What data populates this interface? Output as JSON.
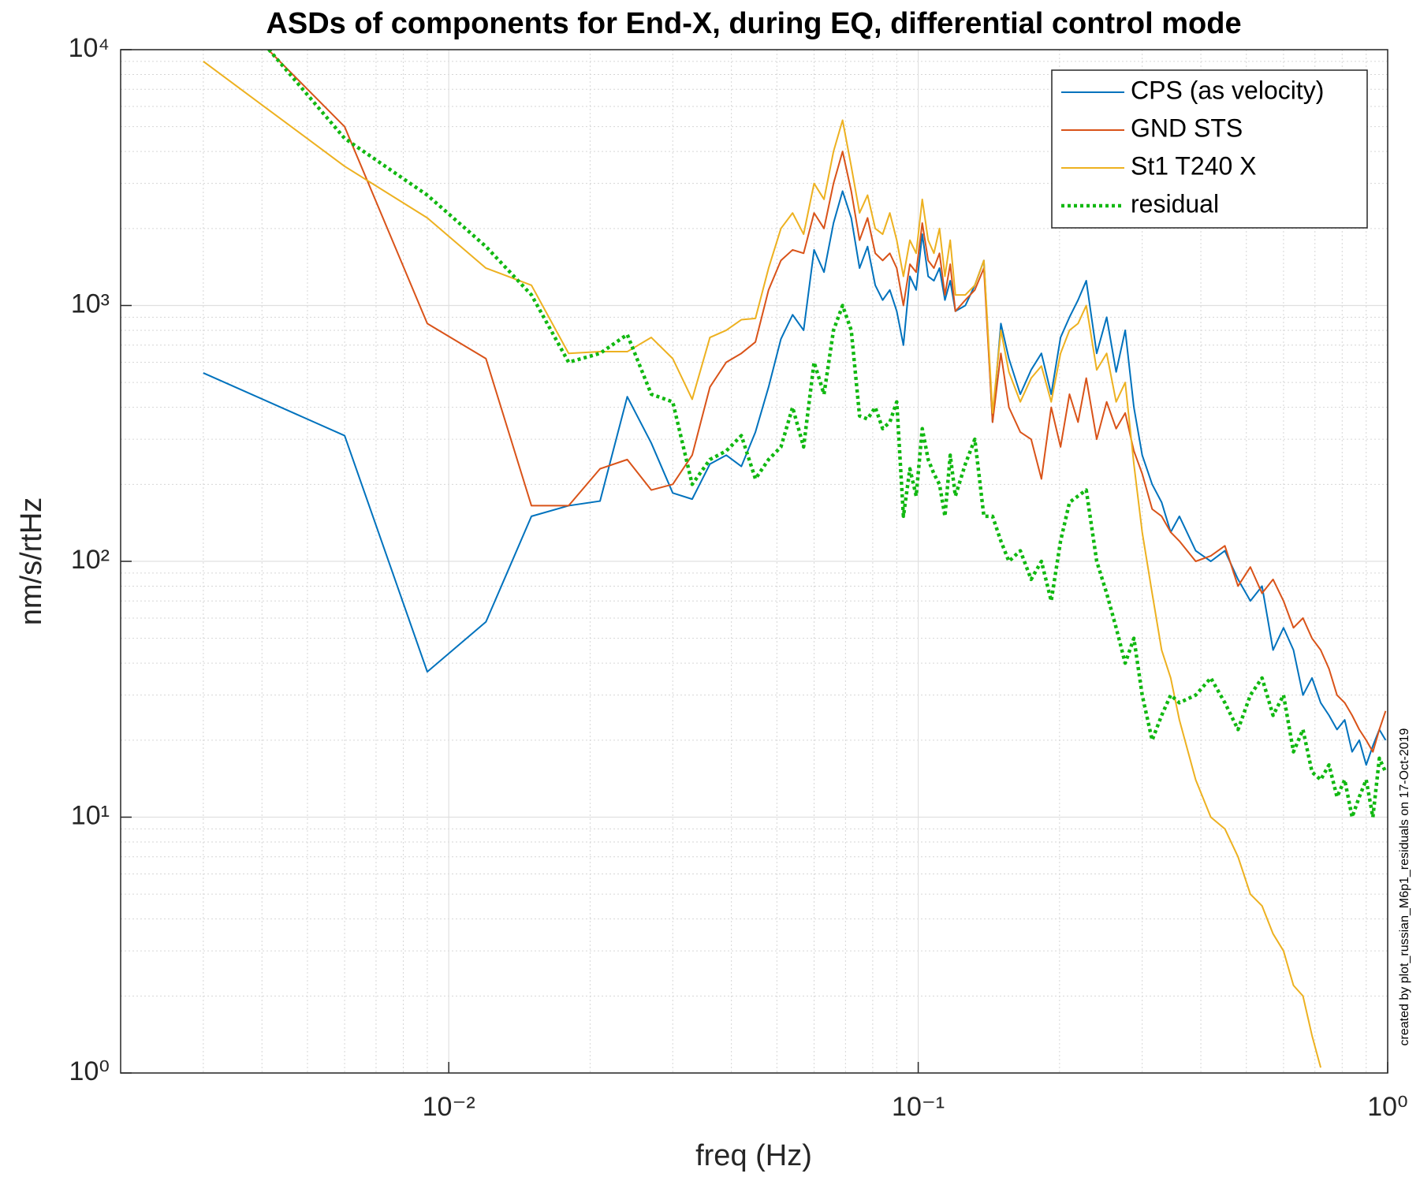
{
  "chart_data": {
    "type": "line",
    "title": "ASDs of components for End-X, during EQ, differential control mode",
    "x_label": "freq (Hz)",
    "y_label": "nm/s/rtHz",
    "annotation": "created by plot_russian_M6p1_residuals on 17-Oct-2019",
    "xscale": "log",
    "yscale": "log",
    "grid": true,
    "minor_grid": true,
    "legend_position": "top-right",
    "xlim": [
      0.002,
      1
    ],
    "ylim": [
      1,
      10000
    ],
    "xticks": [
      {
        "value": 0.01,
        "label": "10⁻²"
      },
      {
        "value": 0.1,
        "label": "10⁻¹"
      },
      {
        "value": 1,
        "label": "10⁰"
      }
    ],
    "yticks": [
      {
        "value": 1,
        "label": "10⁰"
      },
      {
        "value": 10,
        "label": "10¹"
      },
      {
        "value": 100,
        "label": "10²"
      },
      {
        "value": 1000,
        "label": "10³"
      },
      {
        "value": 10000,
        "label": "10⁴"
      }
    ],
    "x": [
      0.003,
      0.006,
      0.009,
      0.012,
      0.015,
      0.018,
      0.021,
      0.024,
      0.027,
      0.03,
      0.033,
      0.036,
      0.039,
      0.042,
      0.045,
      0.048,
      0.051,
      0.054,
      0.057,
      0.06,
      0.063,
      0.066,
      0.069,
      0.072,
      0.075,
      0.078,
      0.081,
      0.084,
      0.087,
      0.09,
      0.093,
      0.096,
      0.099,
      0.102,
      0.105,
      0.108,
      0.111,
      0.114,
      0.117,
      0.12,
      0.126,
      0.132,
      0.138,
      0.144,
      0.15,
      0.156,
      0.165,
      0.174,
      0.183,
      0.192,
      0.201,
      0.21,
      0.219,
      0.228,
      0.24,
      0.252,
      0.264,
      0.276,
      0.288,
      0.3,
      0.315,
      0.33,
      0.345,
      0.36,
      0.39,
      0.42,
      0.45,
      0.48,
      0.51,
      0.54,
      0.57,
      0.6,
      0.63,
      0.66,
      0.69,
      0.72,
      0.75,
      0.78,
      0.81,
      0.84,
      0.87,
      0.9,
      0.93,
      0.96,
      0.99
    ],
    "series": [
      {
        "name": "CPS (as velocity)",
        "color": "#0072bd",
        "line_style": "solid",
        "values": [
          545,
          310,
          37,
          58,
          150,
          165,
          172,
          440,
          290,
          185,
          175,
          240,
          260,
          235,
          320,
          480,
          740,
          920,
          800,
          1650,
          1350,
          2100,
          2800,
          2200,
          1400,
          1700,
          1200,
          1050,
          1150,
          950,
          700,
          1300,
          1150,
          1900,
          1300,
          1250,
          1400,
          1050,
          1250,
          950,
          1000,
          1200,
          1500,
          350,
          850,
          620,
          450,
          560,
          650,
          450,
          750,
          900,
          1050,
          1250,
          650,
          900,
          550,
          800,
          400,
          260,
          200,
          170,
          130,
          150,
          110,
          100,
          110,
          85,
          70,
          80,
          45,
          55,
          45,
          30,
          35,
          28,
          25,
          22,
          24,
          18,
          20,
          16,
          19,
          22,
          20
        ]
      },
      {
        "name": "GND STS",
        "color": "#d95319",
        "line_style": "solid",
        "values": [
          18000,
          5000,
          850,
          620,
          165,
          165,
          230,
          250,
          190,
          200,
          260,
          480,
          600,
          650,
          720,
          1150,
          1500,
          1650,
          1600,
          2300,
          2000,
          3000,
          4000,
          2800,
          1800,
          2200,
          1600,
          1500,
          1600,
          1400,
          1000,
          1450,
          1350,
          2100,
          1500,
          1400,
          1600,
          1100,
          1450,
          950,
          1050,
          1150,
          1400,
          350,
          650,
          400,
          320,
          300,
          210,
          400,
          280,
          450,
          350,
          520,
          300,
          420,
          330,
          380,
          270,
          220,
          160,
          150,
          130,
          120,
          100,
          105,
          115,
          80,
          95,
          75,
          85,
          70,
          55,
          60,
          50,
          45,
          38,
          30,
          28,
          25,
          22,
          20,
          18,
          22,
          26
        ]
      },
      {
        "name": "St1 T240 X",
        "color": "#edb120",
        "line_style": "solid",
        "values": [
          9000,
          3500,
          2200,
          1400,
          1200,
          650,
          660,
          660,
          750,
          620,
          430,
          750,
          800,
          880,
          890,
          1400,
          2000,
          2300,
          1900,
          3000,
          2600,
          4000,
          5300,
          3500,
          2300,
          2700,
          2000,
          1900,
          2300,
          1800,
          1300,
          1800,
          1600,
          2600,
          1800,
          1600,
          2000,
          1300,
          1800,
          1100,
          1100,
          1200,
          1500,
          380,
          800,
          550,
          420,
          520,
          580,
          420,
          650,
          800,
          850,
          1000,
          560,
          650,
          420,
          500,
          240,
          130,
          75,
          45,
          35,
          24,
          14,
          10,
          9,
          7,
          5,
          4.5,
          3.5,
          3,
          2.2,
          2,
          1.4,
          1.05,
          null,
          null,
          null,
          null,
          null,
          null,
          null,
          null,
          null
        ]
      },
      {
        "name": "residual",
        "color": "#11b811",
        "line_style": "dotted",
        "values": [
          20000,
          4500,
          2700,
          1700,
          1100,
          600,
          650,
          770,
          450,
          420,
          200,
          250,
          270,
          310,
          210,
          250,
          280,
          400,
          280,
          600,
          450,
          800,
          1000,
          800,
          370,
          360,
          400,
          330,
          350,
          420,
          150,
          230,
          180,
          330,
          250,
          220,
          200,
          150,
          260,
          180,
          240,
          300,
          150,
          150,
          120,
          100,
          110,
          85,
          100,
          70,
          120,
          170,
          180,
          190,
          100,
          75,
          55,
          40,
          50,
          30,
          20,
          25,
          30,
          28,
          30,
          35,
          28,
          22,
          30,
          35,
          25,
          30,
          18,
          22,
          15,
          14,
          16,
          12,
          14,
          10,
          12,
          14,
          10,
          17,
          15
        ]
      }
    ]
  }
}
